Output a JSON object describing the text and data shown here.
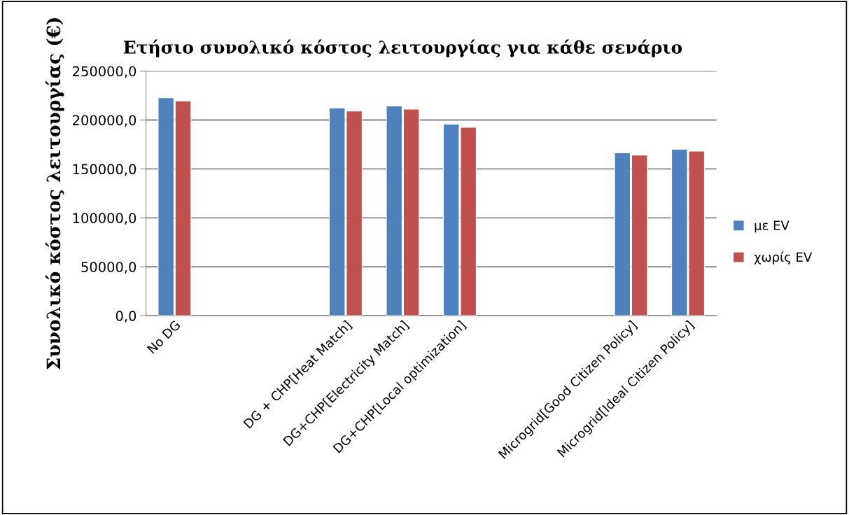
{
  "chart_data": {
    "type": "bar",
    "title": "Ετήσιο συνολικό κόστος λειτουργίας για κάθε σενάριο",
    "ylabel": "Συνολικό κόστος λειτουργίας (€)",
    "categories": [
      "No DG",
      null,
      null,
      "DG + CHP[Heat Match]",
      "DG+CHP[Electricity Match]",
      "DG+CHP[Local optimization]",
      null,
      null,
      "Microgrid[Good Citizen Policy]",
      "Microgrid[Ideal Citizen Policy]"
    ],
    "series": [
      {
        "name": "με EV",
        "color": "#4f81bd",
        "values": [
          222800,
          null,
          null,
          212400,
          214400,
          195700,
          null,
          null,
          166500,
          170100
        ]
      },
      {
        "name": "χωρίς EV",
        "color": "#c0504d",
        "values": [
          219500,
          null,
          null,
          209100,
          211100,
          192600,
          null,
          null,
          164100,
          168200
        ]
      }
    ],
    "ylim": [
      0,
      250000
    ],
    "yticks": [
      {
        "value": 0,
        "label": "0,0"
      },
      {
        "value": 50000,
        "label": "50000,0"
      },
      {
        "value": 100000,
        "label": "100000,0"
      },
      {
        "value": 150000,
        "label": "150000,0"
      },
      {
        "value": 200000,
        "label": "200000,0"
      },
      {
        "value": 250000,
        "label": "250000,0"
      }
    ],
    "grid": "y",
    "legend": "right"
  }
}
